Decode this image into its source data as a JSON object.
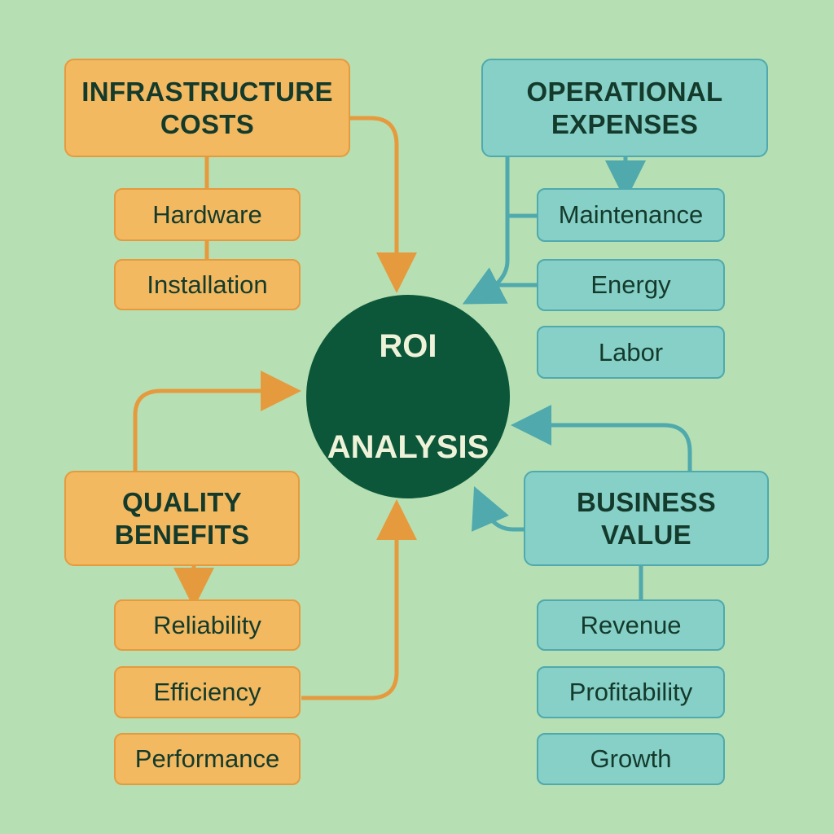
{
  "center": {
    "line1": "ROI",
    "line2": "ANALYSIS"
  },
  "infrastructure": {
    "title": "INFRASTRUCTURE\nCOSTS",
    "items": [
      "Hardware",
      "Installation"
    ]
  },
  "operational": {
    "title": "OPERATIONAL\nEXPENSES",
    "items": [
      "Maintenance",
      "Energy",
      "Labor"
    ]
  },
  "quality": {
    "title": "QUALITY\nBENEFITS",
    "items": [
      "Reliability",
      "Efficiency",
      "Performance"
    ]
  },
  "business": {
    "title": "BUSINESS\nVALUE",
    "items": [
      "Revenue",
      "Profitability",
      "Growth"
    ]
  },
  "colors": {
    "background": "#b6e0b3",
    "orange_box": "#f2b961",
    "orange_line": "#e69a3e",
    "teal_box": "#86d0c8",
    "teal_line": "#4fa9ad",
    "center": "#0c573a"
  }
}
